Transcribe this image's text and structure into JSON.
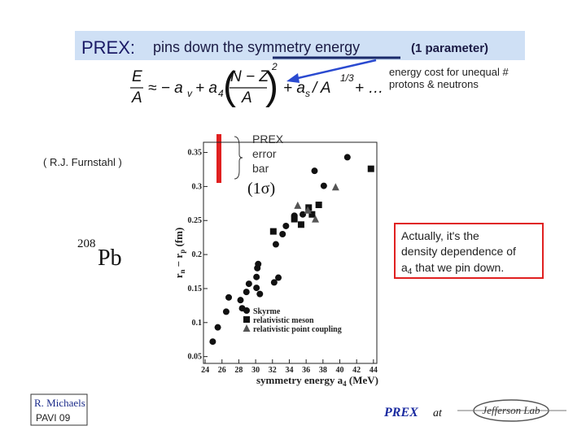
{
  "title": {
    "prefix": "PREX:",
    "main": "pins down the symmetry energy",
    "note": "(1 parameter)"
  },
  "formula": [
    "E",
    "A",
    "≈ − a",
    "v",
    "+ a",
    "4",
    "N − Z",
    "A",
    "2",
    "+ a",
    "s",
    "/ A",
    "1/3",
    "+ …"
  ],
  "energy_note": [
    "energy cost for unequal #",
    "protons & neutrons"
  ],
  "credit": "( R.J. Furnstahl )",
  "nucleus": {
    "mass": "208",
    "symbol": "Pb"
  },
  "error_bar": {
    "label": [
      "PREX",
      "error",
      "bar"
    ],
    "sigma": "(1σ)"
  },
  "callout": [
    "Actually, it's the",
    "density dependence of",
    "a",
    "4",
    " that we pin down."
  ],
  "footer": {
    "author": "R. Michaels",
    "event": "PAVI 09",
    "prex": "PREX",
    "at": "at",
    "logo": "Jefferson Lab"
  },
  "chart_data": {
    "type": "scatter",
    "x_label": [
      "symmetry energy a",
      "4",
      " (MeV)"
    ],
    "y_label": [
      "r",
      "n",
      " − r",
      "p",
      " (fm)"
    ],
    "xlim": [
      23.8,
      44.4
    ],
    "ylim": [
      0.04,
      0.365
    ],
    "xticks": [
      24,
      26,
      28,
      30,
      32,
      34,
      36,
      38,
      40,
      42,
      44
    ],
    "yticks": [
      0.05,
      0.1,
      0.15,
      0.2,
      0.25,
      0.3,
      0.35
    ],
    "legend": "lower right",
    "series": [
      {
        "name": "Skyrme",
        "color": "#111111",
        "marker": "circle",
        "x": [
          24.9,
          25.5,
          26.5,
          26.8,
          28.2,
          28.4,
          28.9,
          29.2,
          30.1,
          30.1,
          30.2,
          30.3,
          30.5,
          32.2,
          32.7,
          32.4,
          33.2,
          33.6,
          34.6,
          35.6,
          37.0,
          38.1,
          40.9
        ],
        "values": [
          0.072,
          0.093,
          0.116,
          0.137,
          0.133,
          0.121,
          0.145,
          0.157,
          0.167,
          0.151,
          0.18,
          0.186,
          0.142,
          0.159,
          0.166,
          0.215,
          0.23,
          0.242,
          0.257,
          0.259,
          0.323,
          0.301,
          0.343
        ]
      },
      {
        "name": "relativistic meson",
        "color": "#111111",
        "marker": "square",
        "x": [
          32.1,
          34.6,
          36.3,
          36.7,
          37.5,
          43.7,
          35.4
        ],
        "values": [
          0.234,
          0.252,
          0.269,
          0.259,
          0.273,
          0.326,
          0.244
        ]
      },
      {
        "name": "relativistic point coupling",
        "color": "#555555",
        "marker": "triangle",
        "x": [
          35.0,
          37.1,
          39.5,
          36.2
        ],
        "values": [
          0.272,
          0.252,
          0.299,
          0.265
        ]
      }
    ]
  }
}
